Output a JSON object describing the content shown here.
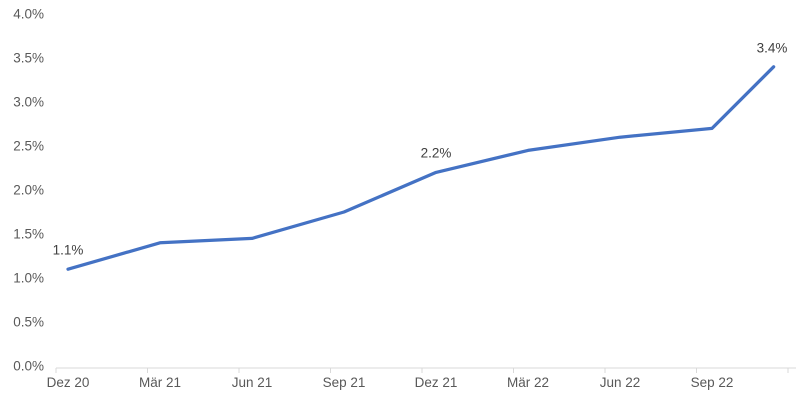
{
  "chart_data": {
    "type": "line",
    "title": "",
    "xlabel": "",
    "ylabel": "",
    "grid": "off",
    "legend": "none",
    "x_tick_labels": [
      "Dez 20",
      "Mär 21",
      "Jun 21",
      "Sep 21",
      "Dez 21",
      "Mär 22",
      "Jun 22",
      "Sep 22"
    ],
    "y_tick_labels": [
      "0.0%",
      "0.5%",
      "1.0%",
      "1.5%",
      "2.0%",
      "2.5%",
      "3.0%",
      "3.5%",
      "4.0%"
    ],
    "ylim": [
      0.0,
      4.0
    ],
    "y_step": 0.5,
    "series": [
      {
        "name": "rate",
        "color": "#4472C4",
        "x_positions": [
          0,
          1,
          2,
          3,
          4,
          5,
          6,
          7,
          7.67
        ],
        "values": [
          1.1,
          1.4,
          1.45,
          1.75,
          2.2,
          2.45,
          2.6,
          2.7,
          3.4
        ]
      }
    ],
    "point_labels": [
      {
        "point_index": 0,
        "text": "1.1%"
      },
      {
        "point_index": 4,
        "text": "2.2%"
      },
      {
        "point_index": 8,
        "text": "3.4%"
      }
    ],
    "colors": {
      "line": "#4472C4",
      "axis_line": "#D9D9D9",
      "axis_tick_label": "#595959",
      "data_label": "#404040"
    }
  }
}
